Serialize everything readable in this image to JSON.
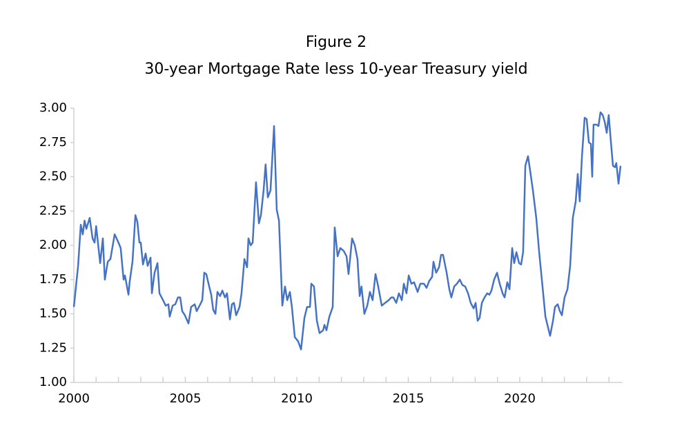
{
  "chart_data": {
    "type": "line",
    "title": "Figure 2",
    "subtitle": "30-year Mortgage Rate less 10-year Treasury yield",
    "xlim": [
      2000,
      2024.6
    ],
    "xticks": [
      2000,
      2005,
      2010,
      2015,
      2020
    ],
    "xminorticks": [
      2000,
      2001,
      2002,
      2003,
      2004,
      2005,
      2006,
      2007,
      2008,
      2009,
      2010,
      2011,
      2012,
      2013,
      2014,
      2015,
      2016,
      2017,
      2018,
      2019,
      2020,
      2021,
      2022,
      2023,
      2024
    ],
    "ylim": [
      1.0,
      3.0
    ],
    "yticks": [
      {
        "value": 1.0,
        "label": "1.00"
      },
      {
        "value": 1.25,
        "label": "1.25"
      },
      {
        "value": 1.5,
        "label": "1.50"
      },
      {
        "value": 1.75,
        "label": "1.75"
      },
      {
        "value": 2.0,
        "label": "2.00"
      },
      {
        "value": 2.25,
        "label": "2.25"
      },
      {
        "value": 2.5,
        "label": "2.50"
      },
      {
        "value": 2.75,
        "label": "2.75"
      },
      {
        "value": 3.0,
        "label": "3.00"
      }
    ],
    "grid": false,
    "series": [
      {
        "name": "30-year Mortgage Rate less 10-year Treasury yield",
        "color": "#4472c4",
        "x": [
          2000.0,
          2000.19,
          2000.31,
          2000.4,
          2000.48,
          2000.56,
          2000.71,
          2000.84,
          2000.93,
          2001.0,
          2001.18,
          2001.3,
          2001.39,
          2001.52,
          2001.64,
          2001.83,
          2002.0,
          2002.1,
          2002.23,
          2002.29,
          2002.45,
          2002.5,
          2002.63,
          2002.76,
          2002.85,
          2002.94,
          2003.0,
          2003.1,
          2003.22,
          2003.31,
          2003.44,
          2003.5,
          2003.62,
          2003.75,
          2003.84,
          2004.0,
          2004.12,
          2004.24,
          2004.3,
          2004.43,
          2004.55,
          2004.67,
          2004.77,
          2004.86,
          2004.98,
          2005.14,
          2005.26,
          2005.42,
          2005.51,
          2005.67,
          2005.76,
          2005.85,
          2005.94,
          2006.07,
          2006.16,
          2006.25,
          2006.35,
          2006.44,
          2006.56,
          2006.66,
          2006.78,
          2006.87,
          2007.0,
          2007.09,
          2007.18,
          2007.28,
          2007.43,
          2007.52,
          2007.65,
          2007.77,
          2007.83,
          2007.93,
          2008.02,
          2008.17,
          2008.3,
          2008.39,
          2008.51,
          2008.6,
          2008.7,
          2008.82,
          2008.98,
          2009.1,
          2009.2,
          2009.35,
          2009.47,
          2009.57,
          2009.69,
          2009.78,
          2009.91,
          2010.06,
          2010.19,
          2010.34,
          2010.46,
          2010.59,
          2010.65,
          2010.77,
          2010.9,
          2011.02,
          2011.18,
          2011.24,
          2011.33,
          2011.46,
          2011.61,
          2011.7,
          2011.83,
          2011.95,
          2012.1,
          2012.23,
          2012.32,
          2012.48,
          2012.6,
          2012.72,
          2012.82,
          2012.9,
          2013.03,
          2013.16,
          2013.28,
          2013.4,
          2013.53,
          2013.65,
          2013.81,
          2013.96,
          2014.12,
          2014.24,
          2014.33,
          2014.46,
          2014.58,
          2014.71,
          2014.8,
          2014.92,
          2015.02,
          2015.14,
          2015.26,
          2015.42,
          2015.54,
          2015.7,
          2015.82,
          2015.94,
          2016.07,
          2016.13,
          2016.25,
          2016.38,
          2016.47,
          2016.56,
          2016.72,
          2016.84,
          2016.93,
          2017.06,
          2017.18,
          2017.31,
          2017.43,
          2017.55,
          2017.68,
          2017.8,
          2017.93,
          2018.02,
          2018.11,
          2018.2,
          2018.3,
          2018.42,
          2018.54,
          2018.64,
          2018.73,
          2018.85,
          2018.98,
          2019.1,
          2019.23,
          2019.32,
          2019.44,
          2019.54,
          2019.66,
          2019.75,
          2019.85,
          2019.97,
          2020.06,
          2020.15,
          2020.25,
          2020.37,
          2020.46,
          2020.59,
          2020.74,
          2020.87,
          2021.02,
          2021.15,
          2021.24,
          2021.36,
          2021.49,
          2021.58,
          2021.7,
          2021.8,
          2021.89,
          2022.01,
          2022.14,
          2022.26,
          2022.38,
          2022.51,
          2022.6,
          2022.69,
          2022.79,
          2022.91,
          2023.0,
          2023.1,
          2023.19,
          2023.25,
          2023.31,
          2023.44,
          2023.53,
          2023.62,
          2023.72,
          2023.81,
          2023.9,
          2023.99,
          2024.09,
          2024.18,
          2024.27,
          2024.33,
          2024.43,
          2024.52
        ],
        "values": [
          1.55,
          1.85,
          2.15,
          2.08,
          2.18,
          2.12,
          2.2,
          2.05,
          2.02,
          2.14,
          1.87,
          2.05,
          1.75,
          1.88,
          1.9,
          2.08,
          2.02,
          1.98,
          1.75,
          1.78,
          1.64,
          1.73,
          1.88,
          2.22,
          2.17,
          2.02,
          2.02,
          1.86,
          1.94,
          1.85,
          1.91,
          1.65,
          1.8,
          1.87,
          1.65,
          1.6,
          1.56,
          1.57,
          1.48,
          1.56,
          1.57,
          1.62,
          1.62,
          1.52,
          1.49,
          1.43,
          1.55,
          1.57,
          1.52,
          1.57,
          1.6,
          1.8,
          1.79,
          1.7,
          1.64,
          1.53,
          1.5,
          1.66,
          1.63,
          1.67,
          1.62,
          1.65,
          1.46,
          1.57,
          1.58,
          1.49,
          1.55,
          1.65,
          1.9,
          1.84,
          2.05,
          2.0,
          2.02,
          2.46,
          2.16,
          2.22,
          2.4,
          2.59,
          2.35,
          2.4,
          2.87,
          2.26,
          2.18,
          1.56,
          1.7,
          1.6,
          1.66,
          1.55,
          1.33,
          1.3,
          1.24,
          1.47,
          1.55,
          1.55,
          1.72,
          1.7,
          1.45,
          1.36,
          1.38,
          1.42,
          1.38,
          1.48,
          1.55,
          2.13,
          1.92,
          1.98,
          1.96,
          1.92,
          1.79,
          2.05,
          2.0,
          1.9,
          1.63,
          1.7,
          1.5,
          1.56,
          1.66,
          1.6,
          1.79,
          1.7,
          1.56,
          1.58,
          1.6,
          1.62,
          1.62,
          1.58,
          1.65,
          1.6,
          1.72,
          1.65,
          1.78,
          1.72,
          1.73,
          1.66,
          1.72,
          1.72,
          1.69,
          1.74,
          1.77,
          1.88,
          1.8,
          1.84,
          1.93,
          1.93,
          1.8,
          1.68,
          1.62,
          1.7,
          1.72,
          1.75,
          1.71,
          1.7,
          1.65,
          1.58,
          1.54,
          1.58,
          1.45,
          1.47,
          1.58,
          1.62,
          1.65,
          1.64,
          1.67,
          1.75,
          1.8,
          1.72,
          1.65,
          1.62,
          1.73,
          1.68,
          1.98,
          1.87,
          1.95,
          1.87,
          1.86,
          1.95,
          2.58,
          2.65,
          2.55,
          2.4,
          2.2,
          1.95,
          1.7,
          1.48,
          1.42,
          1.34,
          1.45,
          1.55,
          1.57,
          1.52,
          1.49,
          1.62,
          1.68,
          1.85,
          2.2,
          2.32,
          2.52,
          2.32,
          2.65,
          2.93,
          2.92,
          2.75,
          2.74,
          2.5,
          2.88,
          2.88,
          2.87,
          2.97,
          2.95,
          2.9,
          2.82,
          2.95,
          2.75,
          2.58,
          2.57,
          2.6,
          2.45,
          2.58
        ]
      }
    ]
  }
}
